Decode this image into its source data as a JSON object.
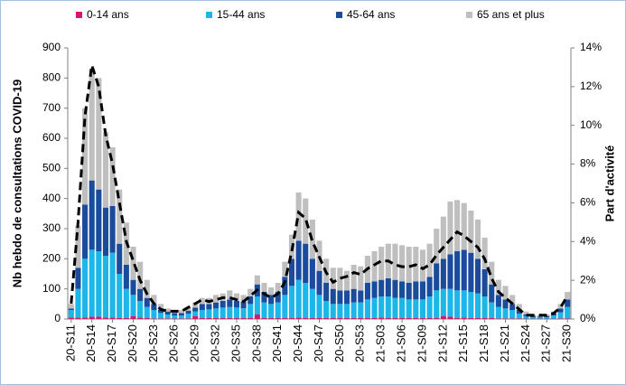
{
  "chart_data": {
    "type": "bar",
    "stacked": true,
    "ylabel": "Nb hebdo de consultations COVID-19",
    "y2label": "Part d'activité",
    "categories": [
      "20-S11",
      null,
      null,
      "20-S14",
      null,
      null,
      "20-S17",
      null,
      null,
      "20-S20",
      null,
      null,
      "20-S23",
      null,
      null,
      "20-S26",
      null,
      null,
      "20-S29",
      null,
      null,
      "20-S32",
      null,
      null,
      "20-S35",
      null,
      null,
      "20-S38",
      null,
      null,
      "20-S41",
      null,
      null,
      "20-S44",
      null,
      null,
      "20-S47",
      null,
      null,
      "20-S50",
      null,
      null,
      "20-S53",
      null,
      null,
      "21-S03",
      null,
      null,
      "21-S06",
      null,
      null,
      "21-S09",
      null,
      null,
      "21-S12",
      null,
      null,
      "21-S15",
      null,
      null,
      "21-S18",
      null,
      null,
      "21-S21",
      null,
      null,
      "21-S24",
      null,
      null,
      "21-S27",
      null,
      null,
      "21-S30"
    ],
    "series": [
      {
        "name": "0-14 ans",
        "color": "#d6176b",
        "values": [
          5,
          5,
          5,
          8,
          8,
          5,
          5,
          4,
          3,
          10,
          5,
          3,
          2,
          2,
          2,
          2,
          2,
          2,
          10,
          3,
          3,
          3,
          3,
          3,
          3,
          3,
          3,
          15,
          3,
          3,
          3,
          3,
          4,
          5,
          4,
          3,
          3,
          3,
          3,
          3,
          3,
          3,
          3,
          3,
          3,
          5,
          3,
          3,
          3,
          3,
          3,
          3,
          3,
          4,
          10,
          8,
          4,
          5,
          3,
          3,
          3,
          3,
          2,
          2,
          2,
          2,
          1,
          1,
          1,
          1,
          1,
          2,
          2
        ]
      },
      {
        "name": "15-44 ans",
        "color": "#1cb6e8",
        "values": [
          25,
          95,
          195,
          222,
          217,
          205,
          215,
          146,
          97,
          70,
          55,
          37,
          28,
          18,
          13,
          10,
          10,
          16,
          15,
          27,
          29,
          32,
          35,
          37,
          35,
          33,
          47,
          60,
          52,
          47,
          52,
          77,
          106,
          125,
          116,
          97,
          77,
          57,
          47,
          47,
          47,
          52,
          52,
          62,
          67,
          70,
          72,
          67,
          67,
          62,
          62,
          62,
          72,
          91,
          90,
          92,
          91,
          90,
          87,
          82,
          72,
          52,
          38,
          33,
          28,
          16,
          9,
          5,
          4,
          5,
          11,
          20,
          38
        ]
      },
      {
        "name": "45-64 ans",
        "color": "#1b4c9c",
        "values": [
          5,
          70,
          180,
          230,
          205,
          160,
          155,
          100,
          80,
          50,
          40,
          30,
          20,
          10,
          10,
          8,
          8,
          10,
          13,
          20,
          18,
          20,
          22,
          25,
          22,
          22,
          25,
          40,
          35,
          30,
          35,
          60,
          90,
          130,
          130,
          100,
          80,
          60,
          50,
          45,
          45,
          45,
          40,
          55,
          55,
          55,
          60,
          60,
          55,
          55,
          60,
          60,
          65,
          90,
          100,
          115,
          130,
          135,
          130,
          115,
          90,
          60,
          40,
          30,
          20,
          12,
          5,
          4,
          3,
          4,
          6,
          13,
          25
        ]
      },
      {
        "name": "65 ans et plus",
        "color": "#bfbfbf",
        "values": [
          15,
          140,
          320,
          370,
          370,
          250,
          195,
          180,
          140,
          110,
          90,
          60,
          30,
          20,
          10,
          10,
          10,
          12,
          17,
          20,
          20,
          25,
          25,
          30,
          25,
          22,
          25,
          30,
          30,
          25,
          30,
          50,
          80,
          160,
          150,
          130,
          100,
          80,
          70,
          75,
          65,
          80,
          80,
          90,
          100,
          110,
          115,
          120,
          120,
          120,
          115,
          105,
          110,
          115,
          140,
          175,
          170,
          155,
          140,
          130,
          105,
          75,
          50,
          45,
          30,
          20,
          10,
          5,
          4,
          5,
          7,
          15,
          25
        ]
      },
      {
        "type": "line",
        "axis": "y2",
        "color": "#000000",
        "dashed": true,
        "values": [
          0.8,
          5,
          10.5,
          13.1,
          12,
          9.5,
          8,
          6,
          4,
          3,
          2,
          1.3,
          0.8,
          0.5,
          0.4,
          0.4,
          0.4,
          0.6,
          0.8,
          1,
          0.9,
          1,
          1.1,
          1.1,
          1,
          0.9,
          1.2,
          1.5,
          1.3,
          1.1,
          1.3,
          1.9,
          3.5,
          5.5,
          5.2,
          4,
          3.2,
          2.4,
          1.9,
          2.1,
          2.2,
          2.4,
          2.3,
          2.6,
          2.8,
          3,
          3,
          2.8,
          2.7,
          2.7,
          2.8,
          2.6,
          2.8,
          3.3,
          3.7,
          4.1,
          4.5,
          4.3,
          4,
          3.7,
          3.1,
          2.1,
          1.4,
          1.1,
          0.8,
          0.5,
          0.2,
          0.2,
          0.2,
          0.2,
          0.3,
          0.6,
          1.2
        ]
      }
    ],
    "ylim": [
      0,
      900
    ],
    "yticks": [
      0,
      100,
      200,
      300,
      400,
      500,
      600,
      700,
      800,
      900
    ],
    "y2lim": [
      0,
      14
    ],
    "y2ticks": [
      {
        "value": 0,
        "label": "0%"
      },
      {
        "value": 2,
        "label": "2%"
      },
      {
        "value": 4,
        "label": "4%"
      },
      {
        "value": 6,
        "label": "6%"
      },
      {
        "value": 8,
        "label": "8%"
      },
      {
        "value": 10,
        "label": "10%"
      },
      {
        "value": 12,
        "label": "12%"
      },
      {
        "value": 14,
        "label": "14%"
      }
    ],
    "grid": false,
    "legend": "top"
  }
}
